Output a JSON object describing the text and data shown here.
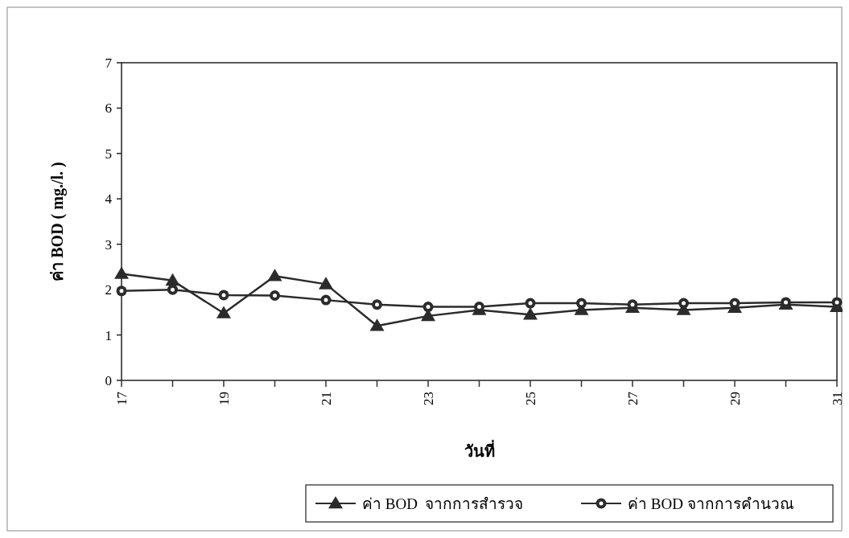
{
  "chart_data": {
    "type": "line",
    "xlabel": "วันที่",
    "ylabel": "ค่า BOD ( mg./l. )",
    "x": [
      17,
      18,
      19,
      20,
      21,
      22,
      23,
      24,
      25,
      26,
      27,
      28,
      29,
      30,
      31
    ],
    "series": [
      {
        "name": "ค่า BOD  จากการสำรวจ",
        "color": "#2b2b2b",
        "marker": "triangle",
        "values": [
          2.35,
          2.2,
          1.48,
          2.3,
          2.12,
          1.2,
          1.42,
          1.55,
          1.45,
          1.55,
          1.6,
          1.55,
          1.6,
          1.67,
          1.62
        ]
      },
      {
        "name": "ค่า BOD จากการคำนวณ",
        "color": "#2b2b2b",
        "marker": "circle",
        "values": [
          1.97,
          2.0,
          1.88,
          1.87,
          1.77,
          1.67,
          1.62,
          1.62,
          1.7,
          1.7,
          1.67,
          1.7,
          1.7,
          1.72,
          1.72
        ]
      }
    ],
    "xlim": [
      17,
      31
    ],
    "xticks": [
      17,
      {
        "value": 18,
        "label": null
      },
      19,
      {
        "value": 20,
        "label": null
      },
      21,
      {
        "value": 22,
        "label": null
      },
      23,
      {
        "value": 24,
        "label": null
      },
      25,
      {
        "value": 26,
        "label": null
      },
      27,
      {
        "value": 28,
        "label": null
      },
      29,
      {
        "value": 30,
        "label": null
      },
      31
    ],
    "ylim": [
      0,
      7
    ],
    "yticks": [
      0,
      1,
      2,
      3,
      4,
      5,
      6,
      7
    ],
    "legend": "bottom right",
    "line_style": "solid"
  }
}
